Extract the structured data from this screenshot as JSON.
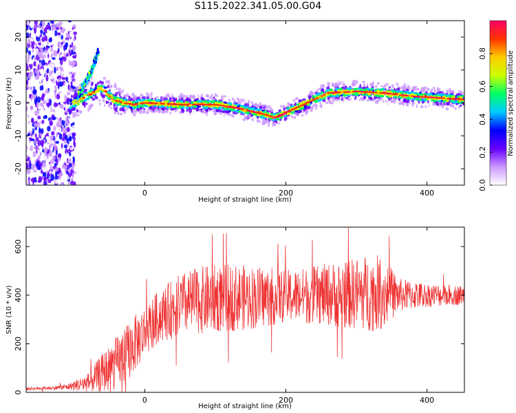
{
  "title": "S115.2022.341.05.00.G04",
  "chart_data": [
    {
      "type": "heatmap",
      "xlabel": "Height of straight line (km)",
      "ylabel": "Frequency (Hz)",
      "xlim": [
        -168,
        453
      ],
      "ylim": [
        -25,
        25
      ],
      "xticks": [
        0,
        200,
        400
      ],
      "yticks": [
        -20,
        -10,
        0,
        10,
        20
      ],
      "colorbar": {
        "label": "Normalized spectral amplitude",
        "range": [
          0.0,
          1.0
        ],
        "ticks": [
          0.0,
          0.2,
          0.4,
          0.6,
          0.8
        ],
        "colors": [
          "#ffffff",
          "#cc99ff",
          "#6600ff",
          "#0000ff",
          "#00ccff",
          "#00ff66",
          "#ccff00",
          "#ffcc00",
          "#ff3300",
          "#ff0066"
        ]
      },
      "ridge": {
        "x": [
          -105,
          -90,
          -75,
          -60,
          -45,
          -30,
          -15,
          0,
          50,
          100,
          130,
          150,
          170,
          185,
          200,
          220,
          240,
          260,
          300,
          340,
          380,
          420,
          453
        ],
        "frequency": [
          -0.5,
          1.0,
          3.0,
          4.5,
          1.0,
          0.0,
          -0.5,
          0.0,
          -0.5,
          -0.5,
          -1.5,
          -2.5,
          -3.5,
          -4.5,
          -3.0,
          -1.0,
          1.0,
          3.0,
          3.5,
          3.0,
          2.0,
          1.5,
          1.0
        ]
      },
      "branch": {
        "x": [
          -95,
          -85,
          -75,
          -70,
          -65
        ],
        "frequency": [
          2.0,
          6.0,
          10.0,
          13.0,
          16.0
        ]
      }
    },
    {
      "type": "line",
      "xlabel": "Height of straight line (km)",
      "ylabel": "SNR (10 * v/v)",
      "xlim": [
        -168,
        453
      ],
      "ylim": [
        0,
        680
      ],
      "xticks": [
        0,
        200,
        400
      ],
      "yticks": [
        0,
        200,
        400,
        600
      ],
      "color": "#ee3333",
      "envelope": {
        "x": [
          -168,
          -130,
          -110,
          -80,
          -60,
          -40,
          -20,
          0,
          20,
          50,
          80,
          120,
          160,
          200,
          240,
          280,
          320,
          340,
          360,
          400,
          453
        ],
        "mean": [
          15,
          18,
          22,
          40,
          80,
          120,
          180,
          250,
          310,
          360,
          380,
          390,
          390,
          395,
          400,
          405,
          410,
          410,
          400,
          400,
          400
        ],
        "amplitude": [
          6,
          8,
          12,
          40,
          80,
          110,
          120,
          110,
          110,
          130,
          140,
          140,
          130,
          110,
          120,
          140,
          160,
          150,
          70,
          50,
          40
        ]
      }
    }
  ]
}
